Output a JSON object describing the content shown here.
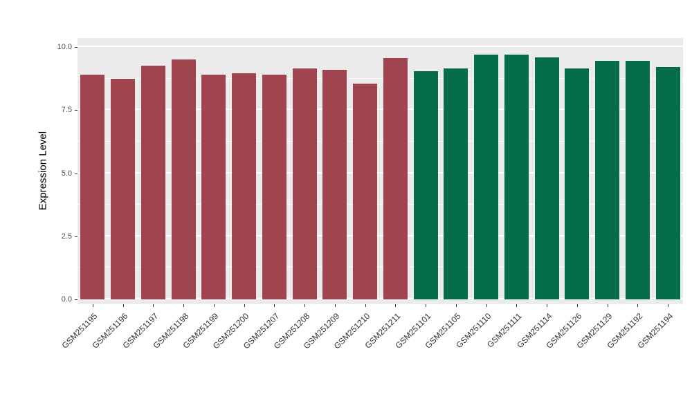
{
  "chart_data": {
    "type": "bar",
    "title": "",
    "xlabel": "",
    "ylabel": "Expression Level",
    "ylim": [
      0,
      10
    ],
    "y_ticks": [
      0,
      2.5,
      5,
      7.5,
      10
    ],
    "y_tick_labels": [
      "0.0",
      "2.5",
      "5.0",
      "7.5",
      "10.0"
    ],
    "y_minor_ticks": [
      1.25,
      3.75,
      6.25,
      8.75
    ],
    "grid": true,
    "legend": "none",
    "panel_background": "#EBEBEB",
    "gridline_color": "#FFFFFF",
    "categories": [
      "GSM251195",
      "GSM251196",
      "GSM251197",
      "GSM251198",
      "GSM251199",
      "GSM251200",
      "GSM251207",
      "GSM251208",
      "GSM251209",
      "GSM251210",
      "GSM251211",
      "GSM251101",
      "GSM251105",
      "GSM251110",
      "GSM251111",
      "GSM251114",
      "GSM251126",
      "GSM251129",
      "GSM251192",
      "GSM251194"
    ],
    "values": [
      8.9,
      8.75,
      9.25,
      9.5,
      8.9,
      8.95,
      8.9,
      9.15,
      9.1,
      8.55,
      9.55,
      9.05,
      9.15,
      9.7,
      9.7,
      9.6,
      9.15,
      9.45,
      9.45,
      9.2
    ],
    "groups": [
      "group1",
      "group1",
      "group1",
      "group1",
      "group1",
      "group1",
      "group1",
      "group1",
      "group1",
      "group1",
      "group1",
      "group2",
      "group2",
      "group2",
      "group2",
      "group2",
      "group2",
      "group2",
      "group2",
      "group2"
    ],
    "group_colors": {
      "group1": "#A04550",
      "group2": "#056E49"
    }
  }
}
